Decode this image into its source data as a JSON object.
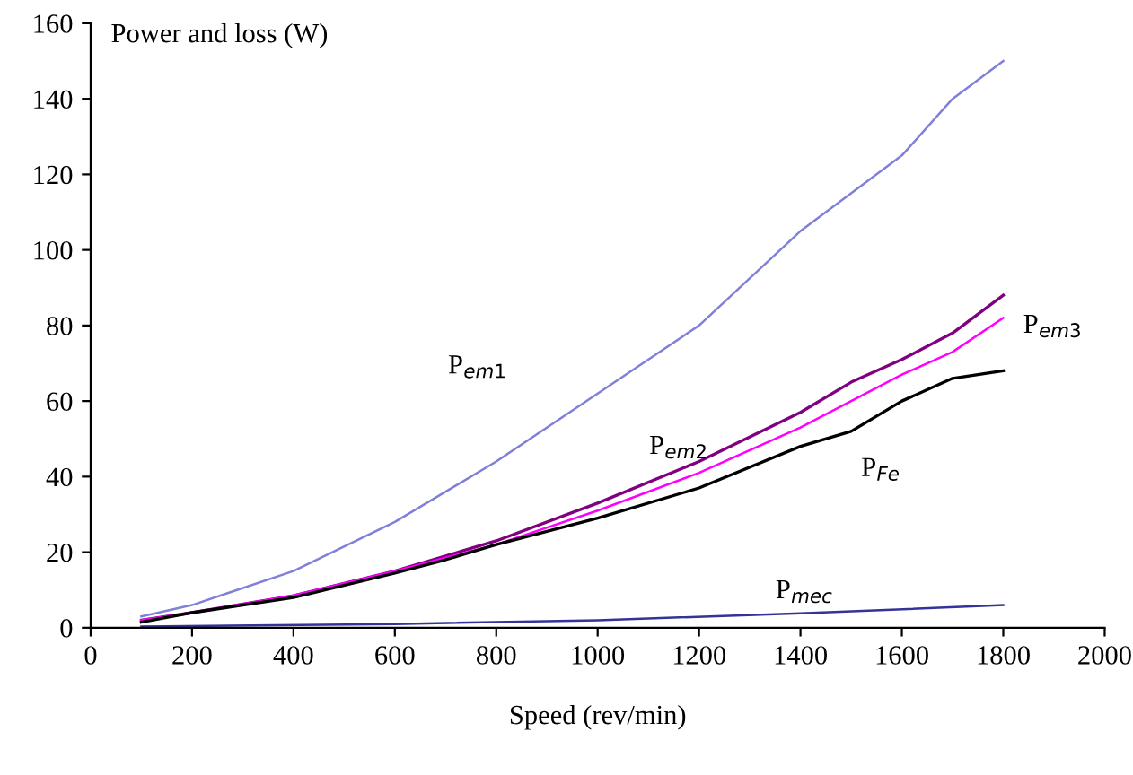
{
  "chart_data": {
    "type": "line",
    "ylabel": "Power and loss (W)",
    "xlabel": "Speed (rev/min)",
    "xlim": [
      0,
      2000
    ],
    "xticks": [
      0,
      200,
      400,
      600,
      800,
      1000,
      1200,
      1400,
      1600,
      1800,
      2000
    ],
    "ylim": [
      0,
      160
    ],
    "yticks": [
      0,
      20,
      40,
      60,
      80,
      100,
      120,
      140,
      160
    ],
    "grid": false,
    "marker": "none",
    "line_style": "solid",
    "series": [
      {
        "name": "P$_{em1}$",
        "color": "#8080d8",
        "x": [
          100,
          200,
          400,
          600,
          800,
          1000,
          1200,
          1400,
          1600,
          1700,
          1800
        ],
        "values": [
          3,
          6,
          15,
          28,
          44,
          62,
          80,
          105,
          125,
          140,
          150
        ]
      },
      {
        "name": "P$_{em2}$",
        "color": "#800080",
        "x": [
          100,
          200,
          400,
          600,
          800,
          1000,
          1200,
          1400,
          1500,
          1600,
          1700,
          1800
        ],
        "values": [
          2,
          4,
          8.5,
          15,
          23,
          33,
          44,
          57,
          65,
          71,
          78,
          88
        ]
      },
      {
        "name": "P$_{em3}$",
        "color": "#ff00ff",
        "x": [
          100,
          200,
          400,
          600,
          800,
          1000,
          1200,
          1400,
          1600,
          1700,
          1800
        ],
        "values": [
          2,
          4,
          8.5,
          15,
          22,
          31,
          41,
          53,
          67,
          73,
          82
        ]
      },
      {
        "name": "P$_{Fe}$",
        "color": "#000000",
        "x": [
          100,
          200,
          400,
          600,
          700,
          800,
          1000,
          1200,
          1400,
          1500,
          1600,
          1700,
          1800
        ],
        "values": [
          1.5,
          4,
          8,
          14.5,
          18,
          22,
          29,
          37,
          48,
          52,
          60,
          66,
          68
        ]
      },
      {
        "name": "P$_{mec}$",
        "color": "#333399",
        "x": [
          100,
          600,
          1000,
          1400,
          1800
        ],
        "values": [
          0.3,
          1,
          2,
          3.8,
          6
        ]
      }
    ]
  }
}
